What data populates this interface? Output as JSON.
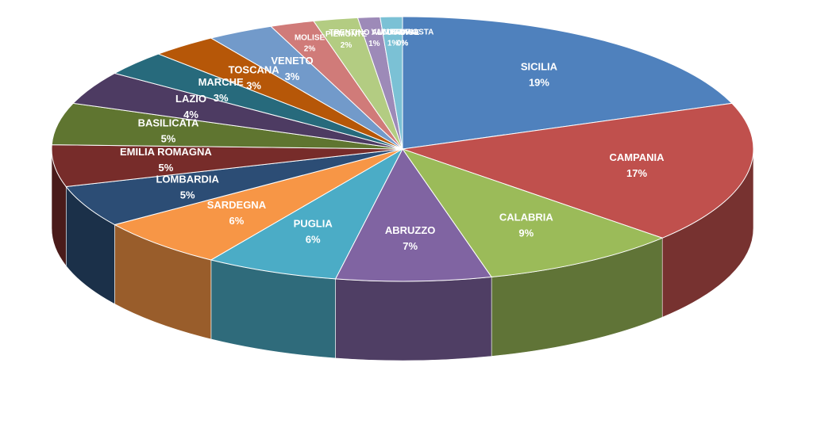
{
  "chart_data": {
    "type": "pie",
    "categories": [
      "SICILIA",
      "CAMPANIA",
      "CALABRIA",
      "ABRUZZO",
      "PUGLIA",
      "SARDEGNA",
      "LOMBARDIA",
      "EMILIA ROMAGNA",
      "BASILICATA",
      "LAZIO",
      "MARCHE",
      "TOSCANA",
      "VENETO",
      "MOLISE",
      "PIEMONTE",
      "TRENTINO ALTO ADIGE",
      "UMBRIA",
      "VALLE D'AOSTA",
      "LIGURIA"
    ],
    "values": [
      19,
      17,
      9,
      7,
      6,
      6,
      5,
      5,
      5,
      4,
      3,
      3,
      3,
      2,
      2,
      1,
      1,
      0,
      0
    ],
    "value_labels": [
      "19%",
      "17%",
      "9%",
      "7%",
      "6%",
      "6%",
      "5%",
      "5%",
      "5%",
      "4%",
      "3%",
      "3%",
      "3%",
      "2%",
      "2%",
      "1%",
      "1%",
      "0%",
      "0%"
    ],
    "colors": [
      "#4f81bd",
      "#c0504d",
      "#9bbb59",
      "#8064a2",
      "#4bacc6",
      "#f79646",
      "#2c4d75",
      "#772c2a",
      "#5f7530",
      "#4d3b62",
      "#276a7c",
      "#b65708",
      "#729aca",
      "#d07b79",
      "#b3cc82",
      "#9d8ab8",
      "#7bc1d5",
      "#f9ae76",
      "#3a679b"
    ]
  }
}
